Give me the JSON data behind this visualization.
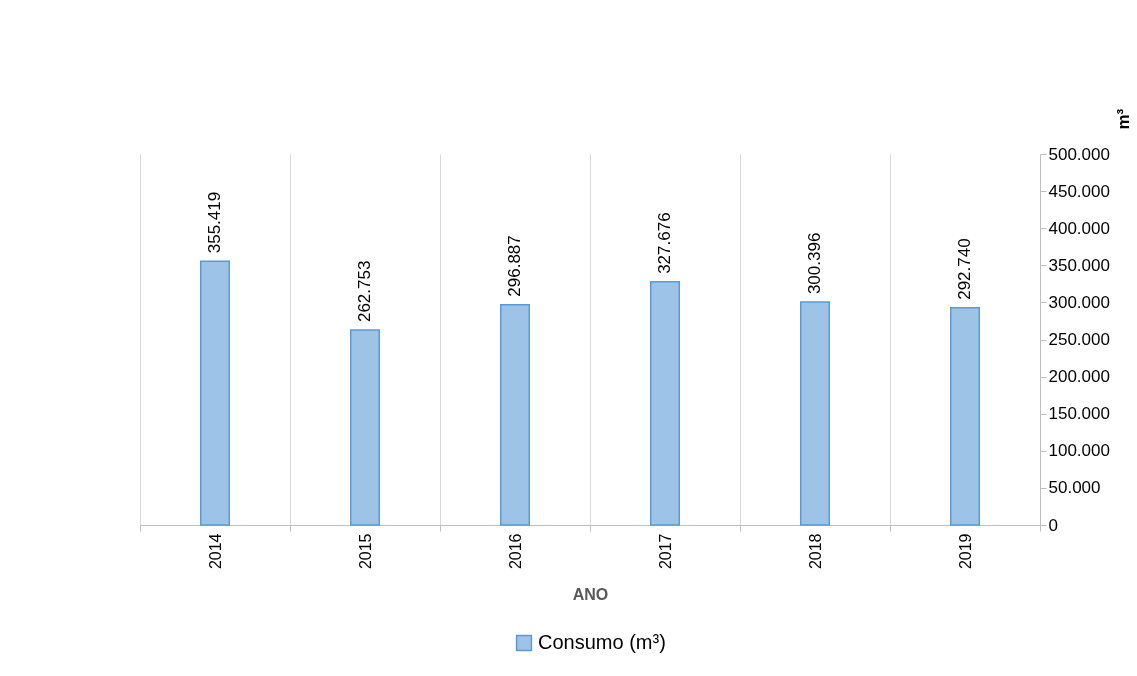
{
  "chart_data": {
    "type": "bar",
    "xlabel": "ANO",
    "ylabel": "m³",
    "categories": [
      "2014",
      "2015",
      "2016",
      "2017",
      "2018",
      "2019"
    ],
    "series": [
      {
        "name": "Consumo (m³)",
        "color": "#9dc3e6",
        "values": [
          355419,
          262753,
          296887,
          327676,
          300396,
          292740
        ],
        "value_labels": [
          "355.419",
          "262.753",
          "296.887",
          "327.676",
          "300.396",
          "292.740"
        ]
      }
    ],
    "ylim": [
      0,
      500000
    ],
    "yticks": [
      0,
      {
        "value": 50000,
        "label": "50.000"
      },
      {
        "value": 100000,
        "label": "100.000"
      },
      {
        "value": 150000,
        "label": "150.000"
      },
      {
        "value": 200000,
        "label": "200.000"
      },
      {
        "value": 250000,
        "label": "250.000"
      },
      {
        "value": 300000,
        "label": "300.000"
      },
      {
        "value": 350000,
        "label": "350.000"
      },
      {
        "value": 400000,
        "label": "400.000"
      },
      {
        "value": 450000,
        "label": "450.000"
      },
      {
        "value": 500000,
        "label": "500.000"
      }
    ],
    "grid": "x",
    "legend": "bottom"
  }
}
